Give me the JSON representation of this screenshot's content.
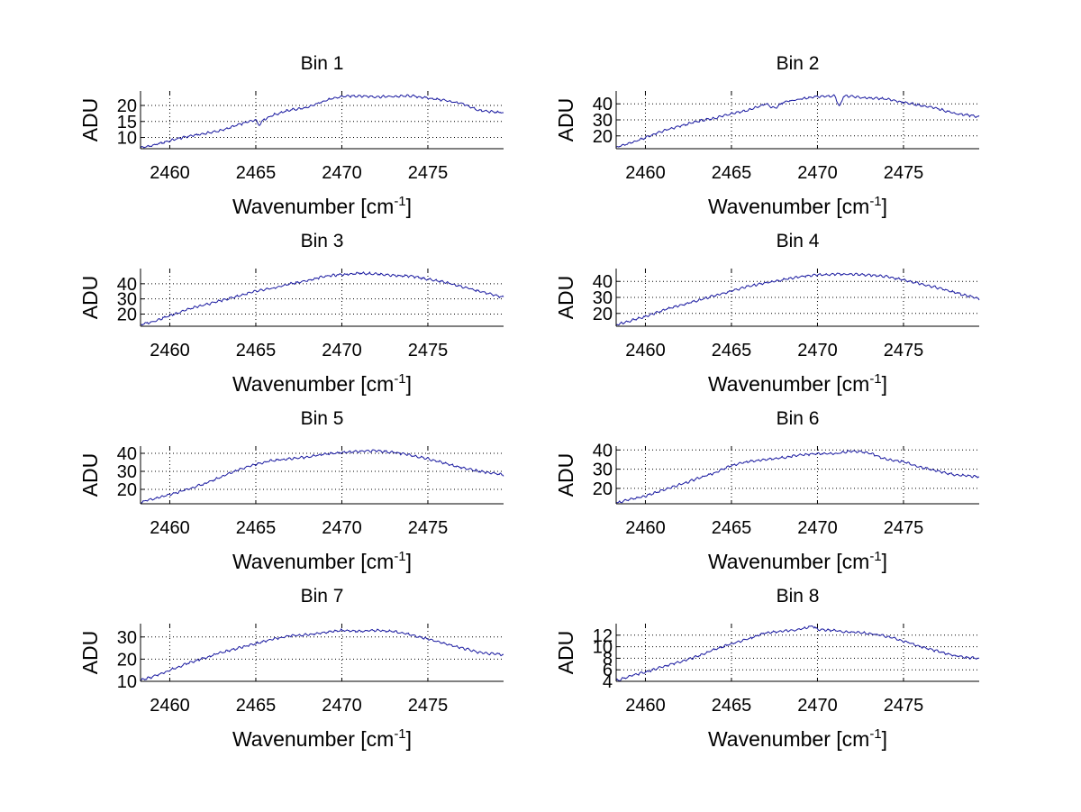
{
  "chart_data": [
    {
      "type": "line",
      "title": "Bin 1",
      "xlabel": "Wavenumber [cm",
      "xlabel_sup": "-1",
      "xlabel_end": "]",
      "ylabel": "ADU",
      "xlim": [
        2458.3,
        2479.4
      ],
      "ylim": [
        6.5,
        24.5
      ],
      "xticks": [
        2460,
        2465,
        2470,
        2475
      ],
      "yticks": [
        10,
        15,
        20
      ],
      "grid": true,
      "series": [
        {
          "x": [
            2458.3,
            2459,
            2460,
            2461,
            2462,
            2463,
            2464,
            2465,
            2465.2,
            2465.4,
            2466,
            2467,
            2468,
            2469,
            2470,
            2471,
            2472,
            2473,
            2474,
            2475,
            2476,
            2477,
            2478,
            2479.4
          ],
          "y": [
            6.8,
            7.5,
            9.0,
            10.3,
            11.2,
            12.2,
            14.0,
            15.6,
            13.8,
            15.4,
            17.0,
            18.6,
            19.3,
            21.5,
            22.8,
            23.0,
            22.7,
            22.8,
            23.0,
            22.3,
            21.6,
            20.5,
            18.4,
            17.7
          ]
        }
      ]
    },
    {
      "type": "line",
      "title": "Bin 2",
      "xlabel": "Wavenumber [cm",
      "xlabel_sup": "-1",
      "xlabel_end": "]",
      "ylabel": "ADU",
      "xlim": [
        2458.3,
        2479.4
      ],
      "ylim": [
        12,
        48
      ],
      "xticks": [
        2460,
        2465,
        2470,
        2475
      ],
      "yticks": [
        20,
        30,
        40
      ],
      "grid": true,
      "series": [
        {
          "x": [
            2458.3,
            2459,
            2460,
            2461,
            2462,
            2463,
            2464,
            2465,
            2466,
            2467,
            2467.5,
            2468,
            2469,
            2470,
            2471,
            2471.3,
            2471.5,
            2472,
            2473,
            2474,
            2475,
            2476,
            2477,
            2478,
            2479.4
          ],
          "y": [
            13,
            15,
            19,
            23,
            26,
            29,
            31,
            34,
            36,
            40,
            37,
            41,
            43,
            44.5,
            45,
            38,
            45,
            44.5,
            43.5,
            43,
            41,
            39,
            37,
            34,
            32
          ]
        }
      ]
    },
    {
      "type": "line",
      "title": "Bin 3",
      "xlabel": "Wavenumber [cm",
      "xlabel_sup": "-1",
      "xlabel_end": "]",
      "ylabel": "ADU",
      "xlim": [
        2458.3,
        2479.4
      ],
      "ylim": [
        12,
        50
      ],
      "xticks": [
        2460,
        2465,
        2470,
        2475
      ],
      "yticks": [
        20,
        30,
        40
      ],
      "grid": true,
      "series": [
        {
          "x": [
            2458.3,
            2459,
            2460,
            2461,
            2462,
            2463,
            2464,
            2465,
            2466,
            2467,
            2468,
            2469,
            2470,
            2471,
            2472,
            2473,
            2474,
            2475,
            2476,
            2477,
            2478,
            2479.4
          ],
          "y": [
            13,
            15,
            19,
            23,
            26,
            29,
            32,
            35,
            37,
            40,
            42,
            45,
            46,
            47,
            46.5,
            45.5,
            45,
            43,
            41,
            38,
            35,
            31
          ]
        }
      ]
    },
    {
      "type": "line",
      "title": "Bin 4",
      "xlabel": "Wavenumber [cm",
      "xlabel_sup": "-1",
      "xlabel_end": "]",
      "ylabel": "ADU",
      "xlim": [
        2458.3,
        2479.4
      ],
      "ylim": [
        12,
        48
      ],
      "xticks": [
        2460,
        2465,
        2470,
        2475
      ],
      "yticks": [
        20,
        30,
        40
      ],
      "grid": true,
      "series": [
        {
          "x": [
            2458.3,
            2459,
            2460,
            2461,
            2462,
            2463,
            2464,
            2465,
            2466,
            2467,
            2468,
            2469,
            2470,
            2471,
            2472,
            2473,
            2474,
            2475,
            2476,
            2477,
            2478,
            2479.4
          ],
          "y": [
            13,
            15,
            18,
            22,
            25,
            28,
            31,
            34,
            37,
            39,
            41,
            43,
            44,
            44.5,
            44.5,
            44,
            43,
            41,
            38.5,
            36,
            33,
            29
          ]
        }
      ]
    },
    {
      "type": "line",
      "title": "Bin 5",
      "xlabel": "Wavenumber [cm",
      "xlabel_sup": "-1",
      "xlabel_end": "]",
      "ylabel": "ADU",
      "xlim": [
        2458.3,
        2479.4
      ],
      "ylim": [
        12,
        44
      ],
      "xticks": [
        2460,
        2465,
        2470,
        2475
      ],
      "yticks": [
        20,
        30,
        40
      ],
      "grid": true,
      "series": [
        {
          "x": [
            2458.3,
            2459,
            2460,
            2461,
            2462,
            2463,
            2464,
            2465,
            2466,
            2467,
            2468,
            2469,
            2470,
            2471,
            2472,
            2473,
            2474,
            2475,
            2476,
            2477,
            2478,
            2479.4
          ],
          "y": [
            13,
            14.5,
            17,
            20,
            23,
            27,
            31,
            34,
            36,
            37,
            38,
            39.5,
            40.5,
            41,
            41.5,
            40.5,
            39,
            37,
            34.5,
            32,
            30,
            28
          ]
        }
      ]
    },
    {
      "type": "line",
      "title": "Bin 6",
      "xlabel": "Wavenumber [cm",
      "xlabel_sup": "-1",
      "xlabel_end": "]",
      "ylabel": "ADU",
      "xlim": [
        2458.3,
        2479.4
      ],
      "ylim": [
        12,
        42
      ],
      "xticks": [
        2460,
        2465,
        2470,
        2475
      ],
      "yticks": [
        20,
        30,
        40
      ],
      "grid": true,
      "series": [
        {
          "x": [
            2458.3,
            2459,
            2460,
            2461,
            2462,
            2463,
            2464,
            2465,
            2466,
            2467,
            2468,
            2469,
            2470,
            2471,
            2472,
            2473,
            2474,
            2475,
            2476,
            2477,
            2478,
            2479.4
          ],
          "y": [
            12.5,
            14,
            16,
            19,
            22,
            25,
            28,
            32,
            34,
            35,
            36,
            37.5,
            38,
            38,
            39.5,
            38.5,
            35,
            34,
            31,
            29,
            27,
            26
          ]
        }
      ]
    },
    {
      "type": "line",
      "title": "Bin 7",
      "xlabel": "Wavenumber [cm",
      "xlabel_sup": "-1",
      "xlabel_end": "]",
      "ylabel": "ADU",
      "xlim": [
        2458.3,
        2479.4
      ],
      "ylim": [
        10,
        36
      ],
      "xticks": [
        2460,
        2465,
        2470,
        2475
      ],
      "yticks": [
        10,
        20,
        30
      ],
      "grid": true,
      "series": [
        {
          "x": [
            2458.3,
            2459,
            2460,
            2461,
            2462,
            2463,
            2464,
            2465,
            2466,
            2467,
            2468,
            2469,
            2470,
            2471,
            2472,
            2473,
            2474,
            2475,
            2476,
            2477,
            2478,
            2479.4
          ],
          "y": [
            10.5,
            12,
            15,
            18,
            20.5,
            23,
            25,
            27,
            29,
            30.5,
            31,
            32,
            33,
            32.5,
            33,
            32.5,
            31,
            29,
            27,
            25,
            23,
            22
          ]
        }
      ]
    },
    {
      "type": "line",
      "title": "Bin 8",
      "xlabel": "Wavenumber [cm",
      "xlabel_sup": "-1",
      "xlabel_end": "]",
      "ylabel": "ADU",
      "xlim": [
        2458.3,
        2479.4
      ],
      "ylim": [
        4,
        14
      ],
      "xticks": [
        2460,
        2465,
        2470,
        2475
      ],
      "yticks": [
        4,
        6,
        8,
        10,
        12
      ],
      "grid": true,
      "series": [
        {
          "x": [
            2458.3,
            2459,
            2460,
            2461,
            2462,
            2463,
            2464,
            2465,
            2466,
            2467,
            2468,
            2469,
            2469.7,
            2470,
            2471,
            2472,
            2473,
            2474,
            2475,
            2476,
            2477,
            2478,
            2479.4
          ],
          "y": [
            4.1,
            4.8,
            5.6,
            6.5,
            7.4,
            8.3,
            9.5,
            10.5,
            11.4,
            12.4,
            12.7,
            13.0,
            13.6,
            13.0,
            12.8,
            12.5,
            12.3,
            11.8,
            11.0,
            10.0,
            9.2,
            8.4,
            7.9
          ]
        }
      ]
    }
  ]
}
